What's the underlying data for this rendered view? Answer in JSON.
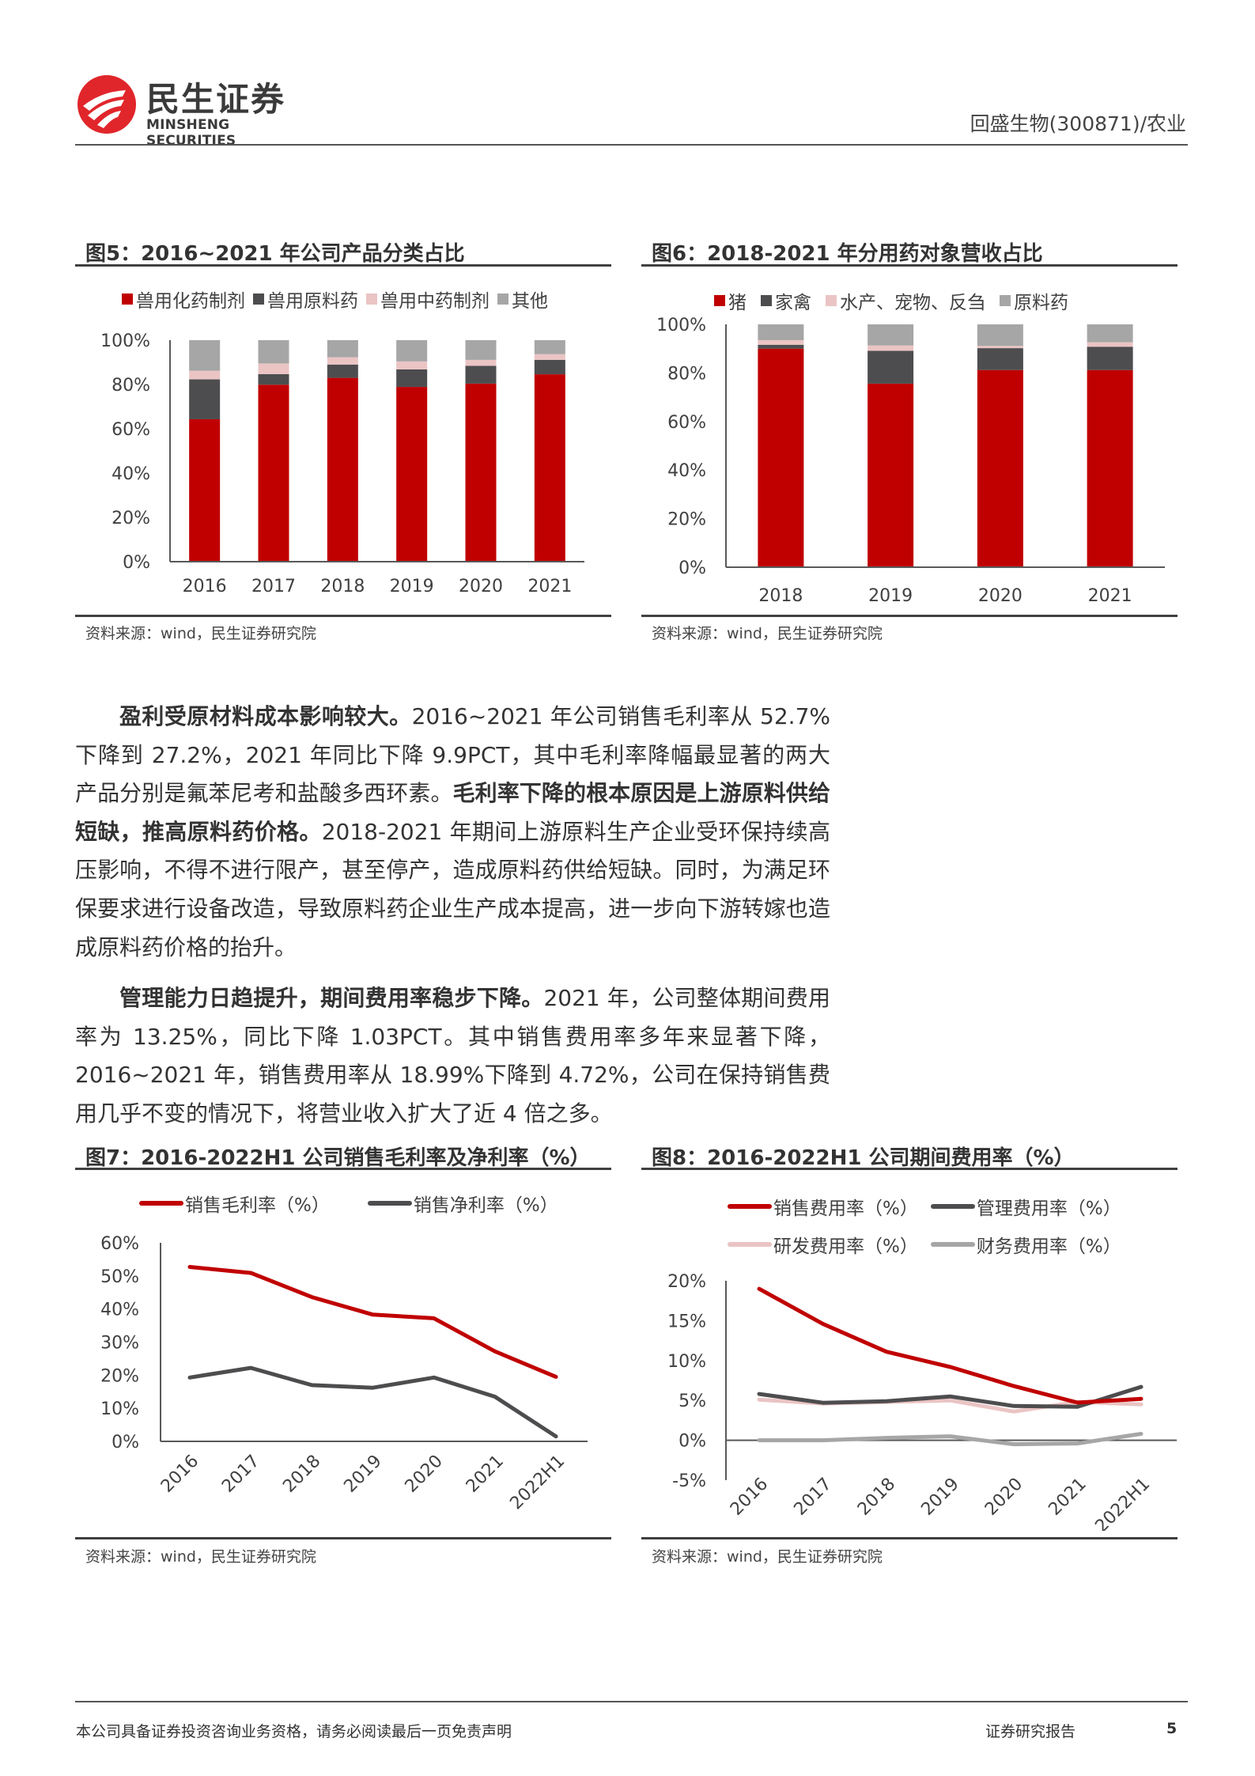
{
  "header": {
    "logo_cn": "民生证券",
    "logo_en": "MINSHENG SECURITIES",
    "stock": "回盛生物(300871)/农业"
  },
  "colors": {
    "red": "#C00000",
    "dark": "#4D4D4F",
    "pink": "#EBC4C4",
    "gray": "#A6A6A6",
    "line_gray": "#A6A6A6"
  },
  "figures": {
    "fig5": {
      "title": "图5：2016~2021 年公司产品分类占比",
      "source": "资料来源：wind，民生证券研究院"
    },
    "fig6": {
      "title": "图6：2018-2021 年分用药对象营收占比",
      "source": "资料来源：wind，民生证券研究院"
    },
    "fig7": {
      "title": "图7：2016-2022H1 公司销售毛利率及净利率（%）",
      "source": "资料来源：wind，民生证券研究院"
    },
    "fig8": {
      "title": "图8：2016-2022H1 公司期间费用率（%）",
      "source": "资料来源：wind，民生证券研究院"
    }
  },
  "chart_data": [
    {
      "id": "fig5",
      "type": "bar",
      "stacked": true,
      "title": "2016~2021 年公司产品分类占比",
      "categories": [
        "2016",
        "2017",
        "2018",
        "2019",
        "2020",
        "2021"
      ],
      "series": [
        {
          "name": "兽用化药制剂",
          "color": "#C00000",
          "values": [
            64.3,
            79.9,
            83.0,
            78.9,
            80.4,
            84.6
          ]
        },
        {
          "name": "兽用原料药",
          "color": "#4D4D4F",
          "values": [
            18.0,
            4.8,
            6.0,
            7.9,
            8.0,
            6.5
          ]
        },
        {
          "name": "兽用中药制剂",
          "color": "#EBC4C4",
          "values": [
            3.9,
            4.8,
            3.3,
            3.6,
            2.7,
            2.6
          ]
        },
        {
          "name": "其他",
          "color": "#A6A6A6",
          "values": [
            13.8,
            10.5,
            7.7,
            9.6,
            8.9,
            6.3
          ]
        }
      ],
      "yticks": [
        "0%",
        "20%",
        "40%",
        "60%",
        "80%",
        "100%"
      ],
      "ylim": [
        0,
        100
      ],
      "legend": "top"
    },
    {
      "id": "fig6",
      "type": "bar",
      "stacked": true,
      "title": "2018-2021 年分用药对象营收占比",
      "categories": [
        "2018",
        "2019",
        "2020",
        "2021"
      ],
      "series": [
        {
          "name": "猪",
          "color": "#C00000",
          "values": [
            90.0,
            75.6,
            81.2,
            81.2
          ]
        },
        {
          "name": "家禽",
          "color": "#4D4D4F",
          "values": [
            1.6,
            13.5,
            9.0,
            9.6
          ]
        },
        {
          "name": "水产、宠物、反刍",
          "color": "#EBC4C4",
          "values": [
            1.9,
            2.2,
            0.9,
            1.8
          ]
        },
        {
          "name": "原料药",
          "color": "#A6A6A6",
          "values": [
            6.5,
            8.7,
            8.9,
            7.4
          ]
        }
      ],
      "yticks": [
        "0%",
        "20%",
        "40%",
        "60%",
        "80%",
        "100%"
      ],
      "ylim": [
        0,
        100
      ],
      "legend": "top"
    },
    {
      "id": "fig7",
      "type": "line",
      "title": "2016-2022H1 公司销售毛利率及净利率（%）",
      "categories": [
        "2016",
        "2017",
        "2018",
        "2019",
        "2020",
        "2021",
        "2022H1"
      ],
      "series": [
        {
          "name": "销售毛利率（%）",
          "color": "#C00000",
          "values": [
            52.7,
            50.9,
            43.6,
            38.3,
            37.2,
            27.2,
            19.5
          ]
        },
        {
          "name": "销售净利率（%）",
          "color": "#4D4D4F",
          "values": [
            19.3,
            22.2,
            17.0,
            16.2,
            19.3,
            13.5,
            1.5
          ]
        }
      ],
      "yticks": [
        "0%",
        "10%",
        "20%",
        "30%",
        "40%",
        "50%",
        "60%"
      ],
      "ylim": [
        0,
        60
      ],
      "legend": "top"
    },
    {
      "id": "fig8",
      "type": "line",
      "title": "2016-2022H1 公司期间费用率（%）",
      "categories": [
        "2016",
        "2017",
        "2018",
        "2019",
        "2020",
        "2021",
        "2022H1"
      ],
      "series": [
        {
          "name": "销售费用率（%）",
          "color": "#C00000",
          "values": [
            18.99,
            14.6,
            11.1,
            9.2,
            6.8,
            4.72,
            5.2
          ]
        },
        {
          "name": "管理费用率（%）",
          "color": "#4D4D4F",
          "values": [
            5.8,
            4.7,
            4.9,
            5.5,
            4.3,
            4.2,
            6.7
          ]
        },
        {
          "name": "研发费用率（%）",
          "color": "#EBC4C4",
          "values": [
            5.1,
            4.6,
            4.8,
            5.0,
            3.6,
            4.8,
            4.5
          ]
        },
        {
          "name": "财务费用率（%）",
          "color": "#A6A6A6",
          "values": [
            0.0,
            0.0,
            0.3,
            0.5,
            -0.5,
            -0.4,
            0.8
          ]
        }
      ],
      "yticks": [
        "-5%",
        "0%",
        "5%",
        "10%",
        "15%",
        "20%"
      ],
      "ylim": [
        -5,
        20
      ],
      "legend": "top"
    }
  ],
  "body": {
    "p1": [
      {
        "text": "盈利受原材料成本影响较大。",
        "bold": true
      },
      {
        "text": "2016~2021 年公司销售毛利率从 52.7%下降到 27.2%，2021 年同比下降 9.9PCT，其中毛利率降幅最显著的两大产品分别是氟苯尼考和盐酸多西环素。",
        "bold": false
      },
      {
        "text": "毛利率下降的根本原因是上游原料供给短缺，推高原料药价格。",
        "bold": true
      },
      {
        "text": "2018-2021 年期间上游原料生产企业受环保持续高压影响，不得不进行限产，甚至停产，造成原料药供给短缺。同时，为满足环保要求进行设备改造，导致原料药企业生产成本提高，进一步向下游转嫁也造成原料药价格的抬升。",
        "bold": false
      }
    ],
    "p2": [
      {
        "text": "管理能力日趋提升，期间费用率稳步下降。",
        "bold": true
      },
      {
        "text": "2021 年，公司整体期间费用率为 13.25%，同比下降 1.03PCT。其中销售费用率多年来显著下降，2016~2021 年，销售费用率从 18.99%下降到 4.72%，公司在保持销售费用几乎不变的情况下，将营业收入扩大了近 4 倍之多。",
        "bold": false
      }
    ]
  },
  "footer": {
    "disclaimer": "本公司具备证券投资咨询业务资格，请务必阅读最后一页免责声明",
    "report_type": "证券研究报告",
    "page_number": "5"
  }
}
